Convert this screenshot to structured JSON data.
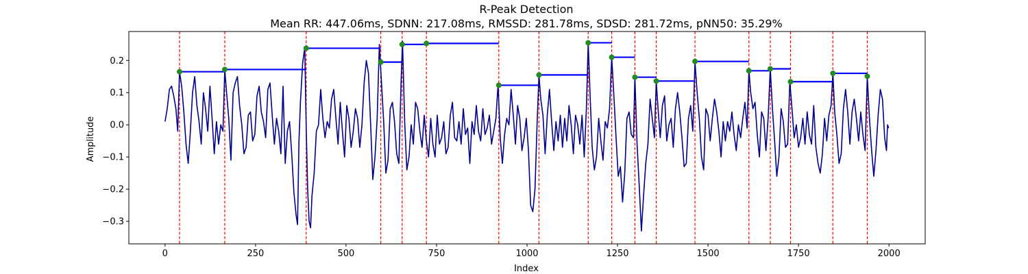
{
  "chart_data": {
    "type": "line",
    "title": "R-Peak Detection",
    "subtitle": "Mean RR: 447.06ms, SDNN: 217.08ms, RMSSD: 281.78ms, SDSD: 281.72ms, pNN50: 35.29%",
    "xlabel": "Index",
    "ylabel": "Amplitude",
    "xlim": [
      -100,
      2100
    ],
    "ylim": [
      -0.37,
      0.29
    ],
    "xticks": [
      0,
      250,
      500,
      750,
      1000,
      1250,
      1500,
      1750,
      2000
    ],
    "xtick_labels": [
      "0",
      "250",
      "500",
      "750",
      "1000",
      "1250",
      "1500",
      "1750",
      "2000"
    ],
    "yticks": [
      -0.3,
      -0.2,
      -0.1,
      0.0,
      0.1,
      0.2
    ],
    "ytick_labels": [
      "−0.3",
      "−0.2",
      "−0.1",
      "0.0",
      "0.1",
      "0.2"
    ],
    "grid": false,
    "signal_color": "#00008b",
    "peak_marker_color": "#228b22",
    "peak_line_color": "#ff0000",
    "rr_line_color": "#0000ff",
    "signal_keypoints": [
      [
        0,
        0.01
      ],
      [
        6,
        0.05
      ],
      [
        12,
        0.11
      ],
      [
        18,
        0.12
      ],
      [
        24,
        0.09
      ],
      [
        30,
        0.05
      ],
      [
        35,
        -0.02
      ],
      [
        40,
        0.165
      ],
      [
        46,
        0.12
      ],
      [
        52,
        0.04
      ],
      [
        58,
        -0.06
      ],
      [
        64,
        -0.12
      ],
      [
        70,
        -0.02
      ],
      [
        76,
        0.1
      ],
      [
        82,
        0.15
      ],
      [
        88,
        0.06
      ],
      [
        94,
        0.01
      ],
      [
        100,
        -0.06
      ],
      [
        106,
        0.1
      ],
      [
        112,
        0.05
      ],
      [
        118,
        -0.02
      ],
      [
        124,
        0.12
      ],
      [
        130,
        0.02
      ],
      [
        136,
        -0.09
      ],
      [
        142,
        0.01
      ],
      [
        148,
        -0.06
      ],
      [
        154,
        0.0
      ],
      [
        160,
        -0.02
      ],
      [
        165,
        0.172
      ],
      [
        170,
        0.1
      ],
      [
        176,
        0.02
      ],
      [
        182,
        -0.11
      ],
      [
        188,
        0.1
      ],
      [
        194,
        0.13
      ],
      [
        200,
        0.15
      ],
      [
        206,
        0.06
      ],
      [
        212,
        0.0
      ],
      [
        218,
        -0.09
      ],
      [
        224,
        -0.07
      ],
      [
        230,
        0.03
      ],
      [
        236,
        0.04
      ],
      [
        242,
        -0.05
      ],
      [
        248,
        -0.03
      ],
      [
        254,
        0.09
      ],
      [
        260,
        0.12
      ],
      [
        266,
        0.04
      ],
      [
        272,
        0.01
      ],
      [
        278,
        -0.04
      ],
      [
        284,
        0.11
      ],
      [
        290,
        0.13
      ],
      [
        296,
        0.03
      ],
      [
        302,
        -0.06
      ],
      [
        308,
        0.02
      ],
      [
        314,
        -0.02
      ],
      [
        320,
        -0.09
      ],
      [
        326,
        0.12
      ],
      [
        332,
        -0.12
      ],
      [
        338,
        -0.02
      ],
      [
        344,
        0.01
      ],
      [
        350,
        -0.09
      ],
      [
        356,
        -0.21
      ],
      [
        362,
        -0.28
      ],
      [
        366,
        -0.31
      ],
      [
        370,
        -0.05
      ],
      [
        374,
        0.07
      ],
      [
        380,
        0.19
      ],
      [
        386,
        0.24
      ],
      [
        390,
        -0.01
      ],
      [
        394,
        -0.2
      ],
      [
        398,
        -0.3
      ],
      [
        402,
        -0.32
      ],
      [
        406,
        -0.22
      ],
      [
        412,
        -0.15
      ],
      [
        418,
        -0.02
      ],
      [
        424,
        0.0
      ],
      [
        430,
        0.11
      ],
      [
        436,
        0.02
      ],
      [
        442,
        -0.04
      ],
      [
        448,
        0.01
      ],
      [
        454,
        -0.01
      ],
      [
        460,
        0.08
      ],
      [
        466,
        0.11
      ],
      [
        472,
        0.02
      ],
      [
        478,
        -0.06
      ],
      [
        484,
        0.07
      ],
      [
        490,
        -0.02
      ],
      [
        496,
        -0.1
      ],
      [
        502,
        0.06
      ],
      [
        508,
        0.02
      ],
      [
        514,
        -0.07
      ],
      [
        520,
        -0.02
      ],
      [
        526,
        0.05
      ],
      [
        532,
        0.02
      ],
      [
        538,
        -0.07
      ],
      [
        544,
        0.0
      ],
      [
        550,
        0.13
      ],
      [
        556,
        0.2
      ],
      [
        562,
        0.16
      ],
      [
        568,
        0.0
      ],
      [
        574,
        -0.17
      ],
      [
        580,
        -0.1
      ],
      [
        586,
        0.02
      ],
      [
        592,
        0.25
      ],
      [
        598,
        0.13
      ],
      [
        604,
        0.01
      ],
      [
        610,
        -0.15
      ],
      [
        616,
        -0.11
      ],
      [
        622,
        0.05
      ],
      [
        628,
        0.07
      ],
      [
        634,
        0.01
      ],
      [
        640,
        -0.09
      ],
      [
        646,
        -0.12
      ],
      [
        652,
        0.13
      ],
      [
        656,
        0.26
      ],
      [
        662,
        0.01
      ],
      [
        668,
        -0.14
      ],
      [
        674,
        -0.1
      ],
      [
        680,
        0.0
      ],
      [
        686,
        -0.06
      ],
      [
        692,
        0.07
      ],
      [
        698,
        0.05
      ],
      [
        704,
        -0.02
      ],
      [
        710,
        -0.07
      ],
      [
        716,
        0.03
      ],
      [
        722,
        -0.05
      ],
      [
        728,
        -0.1
      ],
      [
        734,
        0.02
      ],
      [
        740,
        -0.06
      ],
      [
        746,
        -0.1
      ],
      [
        752,
        0.03
      ],
      [
        758,
        -0.06
      ],
      [
        764,
        -0.04
      ],
      [
        770,
        0.01
      ],
      [
        776,
        -0.09
      ],
      [
        782,
        -0.07
      ],
      [
        788,
        0.03
      ],
      [
        794,
        0.07
      ],
      [
        800,
        -0.04
      ],
      [
        806,
        -0.05
      ],
      [
        812,
        0.01
      ],
      [
        818,
        -0.06
      ],
      [
        824,
        0.05
      ],
      [
        830,
        -0.03
      ],
      [
        836,
        -0.01
      ],
      [
        842,
        -0.12
      ],
      [
        848,
        0.01
      ],
      [
        854,
        -0.03
      ],
      [
        860,
        0.06
      ],
      [
        866,
        -0.02
      ],
      [
        872,
        -0.05
      ],
      [
        878,
        0.05
      ],
      [
        884,
        -0.03
      ],
      [
        890,
        -0.01
      ],
      [
        896,
        0.03
      ],
      [
        902,
        -0.06
      ],
      [
        908,
        -0.02
      ],
      [
        914,
        0.02
      ],
      [
        920,
        0.125
      ],
      [
        926,
        -0.04
      ],
      [
        932,
        -0.12
      ],
      [
        938,
        -0.03
      ],
      [
        944,
        0.02
      ],
      [
        950,
        0.0
      ],
      [
        956,
        0.11
      ],
      [
        962,
        0.03
      ],
      [
        968,
        -0.06
      ],
      [
        974,
        0.06
      ],
      [
        980,
        0.02
      ],
      [
        986,
        -0.08
      ],
      [
        992,
        -0.04
      ],
      [
        998,
        0.02
      ],
      [
        1004,
        -0.08
      ],
      [
        1010,
        -0.25
      ],
      [
        1016,
        -0.27
      ],
      [
        1022,
        -0.2
      ],
      [
        1028,
        0.01
      ],
      [
        1033,
        0.155
      ],
      [
        1038,
        0.08
      ],
      [
        1044,
        0.03
      ],
      [
        1050,
        -0.09
      ],
      [
        1056,
        0.03
      ],
      [
        1062,
        0.11
      ],
      [
        1068,
        0.01
      ],
      [
        1074,
        -0.08
      ],
      [
        1080,
        0.01
      ],
      [
        1086,
        -0.05
      ],
      [
        1092,
        0.03
      ],
      [
        1098,
        -0.07
      ],
      [
        1104,
        0.02
      ],
      [
        1110,
        -0.05
      ],
      [
        1116,
        0.06
      ],
      [
        1122,
        0.0
      ],
      [
        1128,
        -0.09
      ],
      [
        1134,
        0.03
      ],
      [
        1140,
        0.0
      ],
      [
        1146,
        -0.06
      ],
      [
        1152,
        0.03
      ],
      [
        1158,
        -0.1
      ],
      [
        1164,
        0.05
      ],
      [
        1169,
        0.255
      ],
      [
        1174,
        0.1
      ],
      [
        1180,
        -0.07
      ],
      [
        1186,
        -0.14
      ],
      [
        1192,
        -0.1
      ],
      [
        1198,
        0.02
      ],
      [
        1204,
        -0.05
      ],
      [
        1210,
        -0.11
      ],
      [
        1216,
        0.01
      ],
      [
        1222,
        -0.01
      ],
      [
        1228,
        0.05
      ],
      [
        1234,
        0.21
      ],
      [
        1240,
        0.09
      ],
      [
        1246,
        -0.04
      ],
      [
        1252,
        -0.16
      ],
      [
        1258,
        -0.13
      ],
      [
        1264,
        -0.24
      ],
      [
        1270,
        -0.15
      ],
      [
        1276,
        0.02
      ],
      [
        1282,
        0.04
      ],
      [
        1288,
        -0.03
      ],
      [
        1294,
        -0.04
      ],
      [
        1298,
        0.15
      ],
      [
        1304,
        -0.06
      ],
      [
        1310,
        -0.19
      ],
      [
        1316,
        -0.33
      ],
      [
        1322,
        -0.22
      ],
      [
        1328,
        -0.12
      ],
      [
        1334,
        -0.06
      ],
      [
        1340,
        0.08
      ],
      [
        1346,
        0.02
      ],
      [
        1352,
        -0.04
      ],
      [
        1357,
        0.135
      ],
      [
        1362,
        0.05
      ],
      [
        1368,
        -0.04
      ],
      [
        1374,
        0.06
      ],
      [
        1380,
        0.09
      ],
      [
        1386,
        -0.05
      ],
      [
        1392,
        0.0
      ],
      [
        1398,
        0.02
      ],
      [
        1404,
        -0.07
      ],
      [
        1410,
        0.05
      ],
      [
        1416,
        0.1
      ],
      [
        1422,
        0.04
      ],
      [
        1428,
        -0.04
      ],
      [
        1434,
        -0.13
      ],
      [
        1440,
        -0.12
      ],
      [
        1446,
        0.02
      ],
      [
        1452,
        0.06
      ],
      [
        1458,
        -0.02
      ],
      [
        1464,
        0.195
      ],
      [
        1470,
        0.1
      ],
      [
        1476,
        0.02
      ],
      [
        1482,
        -0.1
      ],
      [
        1488,
        -0.14
      ],
      [
        1494,
        0.05
      ],
      [
        1500,
        0.03
      ],
      [
        1506,
        -0.05
      ],
      [
        1512,
        0.02
      ],
      [
        1518,
        0.08
      ],
      [
        1524,
        0.04
      ],
      [
        1530,
        -0.02
      ],
      [
        1536,
        -0.1
      ],
      [
        1542,
        0.01
      ],
      [
        1548,
        -0.05
      ],
      [
        1554,
        0.01
      ],
      [
        1560,
        -0.02
      ],
      [
        1566,
        0.04
      ],
      [
        1572,
        -0.03
      ],
      [
        1578,
        -0.08
      ],
      [
        1584,
        0.0
      ],
      [
        1590,
        -0.04
      ],
      [
        1596,
        0.02
      ],
      [
        1602,
        0.07
      ],
      [
        1608,
        -0.01
      ],
      [
        1613,
        0.168
      ],
      [
        1618,
        0.1
      ],
      [
        1624,
        0.05
      ],
      [
        1630,
        0.07
      ],
      [
        1636,
        -0.03
      ],
      [
        1642,
        -0.1
      ],
      [
        1648,
        0.04
      ],
      [
        1654,
        0.02
      ],
      [
        1660,
        -0.08
      ],
      [
        1666,
        0.02
      ],
      [
        1672,
        0.175
      ],
      [
        1678,
        0.05
      ],
      [
        1684,
        -0.05
      ],
      [
        1690,
        -0.16
      ],
      [
        1696,
        -0.1
      ],
      [
        1702,
        0.05
      ],
      [
        1708,
        0.01
      ],
      [
        1714,
        -0.07
      ],
      [
        1720,
        -0.06
      ],
      [
        1726,
        0.135
      ],
      [
        1732,
        0.05
      ],
      [
        1738,
        -0.04
      ],
      [
        1744,
        0.0
      ],
      [
        1750,
        -0.07
      ],
      [
        1756,
        -0.04
      ],
      [
        1762,
        0.02
      ],
      [
        1768,
        -0.06
      ],
      [
        1774,
        0.04
      ],
      [
        1780,
        -0.03
      ],
      [
        1786,
        -0.06
      ],
      [
        1792,
        0.06
      ],
      [
        1798,
        -0.07
      ],
      [
        1804,
        -0.12
      ],
      [
        1810,
        -0.15
      ],
      [
        1816,
        -0.09
      ],
      [
        1822,
        0.02
      ],
      [
        1828,
        -0.05
      ],
      [
        1834,
        0.03
      ],
      [
        1840,
        0.06
      ],
      [
        1845,
        0.16
      ],
      [
        1850,
        0.04
      ],
      [
        1856,
        -0.03
      ],
      [
        1862,
        -0.12
      ],
      [
        1868,
        -0.09
      ],
      [
        1874,
        0.05
      ],
      [
        1880,
        0.11
      ],
      [
        1886,
        0.04
      ],
      [
        1892,
        -0.06
      ],
      [
        1898,
        0.04
      ],
      [
        1904,
        0.08
      ],
      [
        1910,
        0.02
      ],
      [
        1916,
        -0.05
      ],
      [
        1922,
        0.04
      ],
      [
        1928,
        -0.03
      ],
      [
        1934,
        -0.08
      ],
      [
        1940,
        0.15
      ],
      [
        1946,
        0.02
      ],
      [
        1952,
        -0.08
      ],
      [
        1958,
        -0.16
      ],
      [
        1964,
        -0.08
      ],
      [
        1970,
        0.03
      ],
      [
        1976,
        0.11
      ],
      [
        1982,
        0.08
      ],
      [
        1988,
        -0.04
      ],
      [
        1993,
        -0.08
      ],
      [
        1996,
        0.0
      ],
      [
        1999,
        -0.01
      ]
    ],
    "peaks": [
      {
        "index": 40,
        "amplitude": 0.165
      },
      {
        "index": 165,
        "amplitude": 0.172
      },
      {
        "index": 390,
        "amplitude": 0.238
      },
      {
        "index": 596,
        "amplitude": 0.195
      },
      {
        "index": 655,
        "amplitude": 0.25
      },
      {
        "index": 722,
        "amplitude": 0.253
      },
      {
        "index": 922,
        "amplitude": 0.123
      },
      {
        "index": 1033,
        "amplitude": 0.155
      },
      {
        "index": 1169,
        "amplitude": 0.255
      },
      {
        "index": 1234,
        "amplitude": 0.21
      },
      {
        "index": 1298,
        "amplitude": 0.148
      },
      {
        "index": 1357,
        "amplitude": 0.136
      },
      {
        "index": 1464,
        "amplitude": 0.197
      },
      {
        "index": 1613,
        "amplitude": 0.168
      },
      {
        "index": 1672,
        "amplitude": 0.174
      },
      {
        "index": 1728,
        "amplitude": 0.134
      },
      {
        "index": 1845,
        "amplitude": 0.16
      },
      {
        "index": 1940,
        "amplitude": 0.151
      }
    ]
  }
}
